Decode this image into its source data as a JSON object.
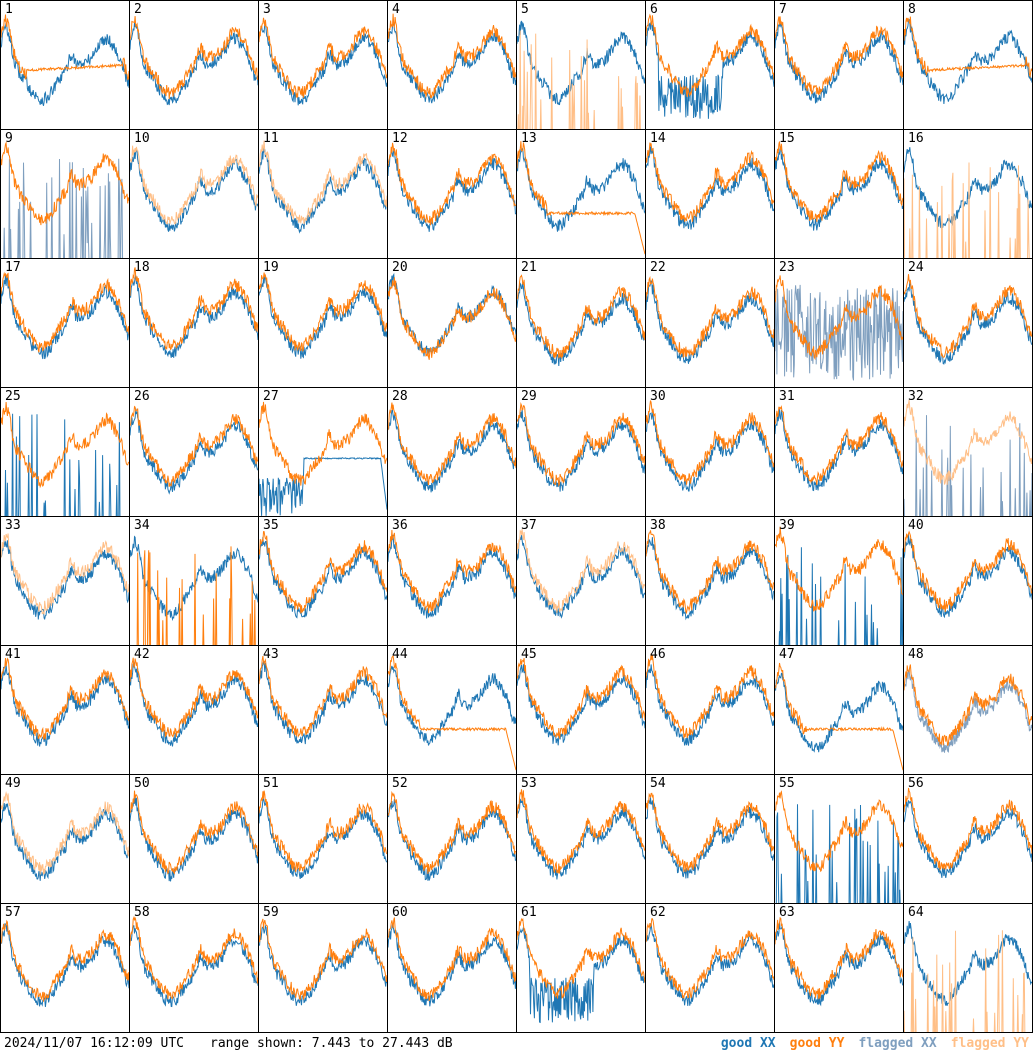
{
  "footer": {
    "timestamp": "2024/11/07 16:12:09 UTC",
    "range_text": "range shown: 7.443 to 27.443 dB"
  },
  "legend": [
    {
      "key": "good_xx",
      "label": "good XX",
      "color": "#1f77b4"
    },
    {
      "key": "good_yy",
      "label": "good YY",
      "color": "#ff7f0e"
    },
    {
      "key": "flagged_xx",
      "label": "flagged XX",
      "color": "#7f9fbf"
    },
    {
      "key": "flagged_yy",
      "label": "flagged YY",
      "color": "#ffbf87"
    }
  ],
  "chart_data": {
    "type": "line",
    "title": "",
    "ylim": [
      7.443,
      27.443
    ],
    "y_unit": "dB",
    "panels": [
      {
        "id": "1",
        "xx": "good",
        "yy": "good",
        "shape": "bandpass",
        "xx_offset": 0,
        "yy_offset": 0,
        "anomaly": "yy_flat"
      },
      {
        "id": "2",
        "xx": "good",
        "yy": "good",
        "shape": "bandpass",
        "anomaly": "none"
      },
      {
        "id": "3",
        "xx": "good",
        "yy": "good",
        "shape": "bandpass",
        "anomaly": "none"
      },
      {
        "id": "4",
        "xx": "good",
        "yy": "good",
        "shape": "bandpass",
        "anomaly": "none"
      },
      {
        "id": "5",
        "xx": "good",
        "yy": "flagged",
        "shape": "bandpass",
        "anomaly": "yy_spikes"
      },
      {
        "id": "6",
        "xx": "good",
        "yy": "good",
        "shape": "bandpass",
        "anomaly": "xx_noisy_dip"
      },
      {
        "id": "7",
        "xx": "good",
        "yy": "good",
        "shape": "bandpass",
        "anomaly": "none"
      },
      {
        "id": "8",
        "xx": "good",
        "yy": "good",
        "shape": "bandpass",
        "anomaly": "yy_flat"
      },
      {
        "id": "9",
        "xx": "flagged",
        "yy": "good",
        "shape": "bandpass",
        "anomaly": "xx_spikes"
      },
      {
        "id": "10",
        "xx": "good",
        "yy": "flagged",
        "shape": "bandpass",
        "anomaly": "none"
      },
      {
        "id": "11",
        "xx": "good",
        "yy": "flagged",
        "shape": "bandpass",
        "anomaly": "none"
      },
      {
        "id": "12",
        "xx": "good",
        "yy": "good",
        "shape": "bandpass",
        "anomaly": "none"
      },
      {
        "id": "13",
        "xx": "good",
        "yy": "good",
        "shape": "bandpass",
        "anomaly": "yy_flat_drop"
      },
      {
        "id": "14",
        "xx": "good",
        "yy": "good",
        "shape": "bandpass",
        "anomaly": "none"
      },
      {
        "id": "15",
        "xx": "good",
        "yy": "good",
        "shape": "bandpass",
        "anomaly": "none"
      },
      {
        "id": "16",
        "xx": "good",
        "yy": "flagged",
        "shape": "bandpass",
        "anomaly": "yy_spikes"
      },
      {
        "id": "17",
        "xx": "good",
        "yy": "good",
        "shape": "bandpass",
        "anomaly": "none"
      },
      {
        "id": "18",
        "xx": "good",
        "yy": "good",
        "shape": "bandpass",
        "anomaly": "none"
      },
      {
        "id": "19",
        "xx": "good",
        "yy": "good",
        "shape": "bandpass",
        "anomaly": "none"
      },
      {
        "id": "20",
        "xx": "good",
        "yy": "good",
        "shape": "bandpass",
        "anomaly": "none"
      },
      {
        "id": "21",
        "xx": "good",
        "yy": "good",
        "shape": "bandpass",
        "anomaly": "none"
      },
      {
        "id": "22",
        "xx": "good",
        "yy": "good",
        "shape": "bandpass",
        "anomaly": "none"
      },
      {
        "id": "23",
        "xx": "flagged",
        "yy": "good",
        "shape": "bandpass",
        "anomaly": "xx_noise"
      },
      {
        "id": "24",
        "xx": "good",
        "yy": "good",
        "shape": "bandpass",
        "anomaly": "none"
      },
      {
        "id": "25",
        "xx": "good",
        "yy": "good",
        "shape": "bandpass",
        "anomaly": "xx_spikes"
      },
      {
        "id": "26",
        "xx": "good",
        "yy": "good",
        "shape": "bandpass",
        "anomaly": "none"
      },
      {
        "id": "27",
        "xx": "good",
        "yy": "good",
        "shape": "bandpass",
        "anomaly": "xx_dip_flat"
      },
      {
        "id": "28",
        "xx": "good",
        "yy": "good",
        "shape": "bandpass",
        "anomaly": "none"
      },
      {
        "id": "29",
        "xx": "good",
        "yy": "good",
        "shape": "bandpass",
        "anomaly": "none"
      },
      {
        "id": "30",
        "xx": "good",
        "yy": "good",
        "shape": "bandpass",
        "anomaly": "none"
      },
      {
        "id": "31",
        "xx": "good",
        "yy": "good",
        "shape": "bandpass",
        "anomaly": "none"
      },
      {
        "id": "32",
        "xx": "flagged",
        "yy": "flagged",
        "shape": "bandpass",
        "anomaly": "xx_spikes"
      },
      {
        "id": "33",
        "xx": "good",
        "yy": "flagged",
        "shape": "bandpass",
        "anomaly": "none"
      },
      {
        "id": "34",
        "xx": "good",
        "yy": "good",
        "shape": "bandpass",
        "anomaly": "yy_spikes"
      },
      {
        "id": "35",
        "xx": "good",
        "yy": "good",
        "shape": "bandpass",
        "anomaly": "none"
      },
      {
        "id": "36",
        "xx": "good",
        "yy": "good",
        "shape": "bandpass",
        "anomaly": "none"
      },
      {
        "id": "37",
        "xx": "good",
        "yy": "flagged",
        "shape": "bandpass",
        "anomaly": "none"
      },
      {
        "id": "38",
        "xx": "good",
        "yy": "good",
        "shape": "bandpass",
        "anomaly": "none"
      },
      {
        "id": "39",
        "xx": "good",
        "yy": "good",
        "shape": "bandpass",
        "anomaly": "xx_spikes"
      },
      {
        "id": "40",
        "xx": "good",
        "yy": "good",
        "shape": "bandpass",
        "anomaly": "none"
      },
      {
        "id": "41",
        "xx": "good",
        "yy": "good",
        "shape": "bandpass",
        "anomaly": "none"
      },
      {
        "id": "42",
        "xx": "good",
        "yy": "good",
        "shape": "bandpass",
        "anomaly": "none"
      },
      {
        "id": "43",
        "xx": "good",
        "yy": "good",
        "shape": "bandpass",
        "anomaly": "none"
      },
      {
        "id": "44",
        "xx": "good",
        "yy": "good",
        "shape": "bandpass",
        "anomaly": "yy_flat_drop"
      },
      {
        "id": "45",
        "xx": "good",
        "yy": "good",
        "shape": "bandpass",
        "anomaly": "none"
      },
      {
        "id": "46",
        "xx": "good",
        "yy": "good",
        "shape": "bandpass",
        "anomaly": "none"
      },
      {
        "id": "47",
        "xx": "good",
        "yy": "good",
        "shape": "bandpass",
        "anomaly": "yy_flat_drop"
      },
      {
        "id": "48",
        "xx": "flagged",
        "yy": "good",
        "shape": "bandpass",
        "anomaly": "none"
      },
      {
        "id": "49",
        "xx": "good",
        "yy": "flagged",
        "shape": "bandpass",
        "anomaly": "none"
      },
      {
        "id": "50",
        "xx": "good",
        "yy": "good",
        "shape": "bandpass",
        "anomaly": "none"
      },
      {
        "id": "51",
        "xx": "good",
        "yy": "good",
        "shape": "bandpass",
        "anomaly": "none"
      },
      {
        "id": "52",
        "xx": "good",
        "yy": "good",
        "shape": "bandpass",
        "anomaly": "none"
      },
      {
        "id": "53",
        "xx": "good",
        "yy": "good",
        "shape": "bandpass",
        "anomaly": "none"
      },
      {
        "id": "54",
        "xx": "good",
        "yy": "good",
        "shape": "bandpass",
        "anomaly": "none"
      },
      {
        "id": "55",
        "xx": "good",
        "yy": "good",
        "shape": "bandpass",
        "anomaly": "xx_spikes"
      },
      {
        "id": "56",
        "xx": "good",
        "yy": "good",
        "shape": "bandpass",
        "anomaly": "none"
      },
      {
        "id": "57",
        "xx": "good",
        "yy": "good",
        "shape": "bandpass",
        "anomaly": "none"
      },
      {
        "id": "58",
        "xx": "good",
        "yy": "good",
        "shape": "bandpass",
        "anomaly": "none"
      },
      {
        "id": "59",
        "xx": "good",
        "yy": "good",
        "shape": "bandpass",
        "anomaly": "none"
      },
      {
        "id": "60",
        "xx": "good",
        "yy": "good",
        "shape": "bandpass",
        "anomaly": "none"
      },
      {
        "id": "61",
        "xx": "good",
        "yy": "good",
        "shape": "bandpass",
        "anomaly": "xx_noisy_dip"
      },
      {
        "id": "62",
        "xx": "good",
        "yy": "good",
        "shape": "bandpass",
        "anomaly": "none"
      },
      {
        "id": "63",
        "xx": "good",
        "yy": "good",
        "shape": "bandpass",
        "anomaly": "none"
      },
      {
        "id": "64",
        "xx": "good",
        "yy": "flagged",
        "shape": "bandpass",
        "anomaly": "yy_spikes"
      }
    ]
  }
}
